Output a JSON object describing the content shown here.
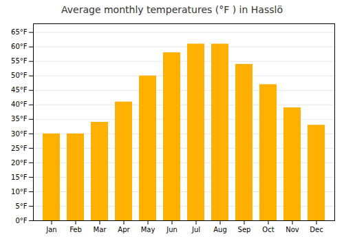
{
  "chart_data": {
    "type": "bar",
    "title": "Average monthly temperatures (°F ) in Hasslö",
    "categories": [
      "Jan",
      "Feb",
      "Mar",
      "Apr",
      "May",
      "Jun",
      "Jul",
      "Aug",
      "Sep",
      "Oct",
      "Nov",
      "Dec"
    ],
    "values": [
      30,
      30,
      34,
      41,
      50,
      58,
      61,
      61,
      54,
      47,
      39,
      33
    ],
    "color": "#FFB000",
    "ylim": [
      0,
      68
    ],
    "yticks": [
      {
        "value": 0,
        "label": "0°F"
      },
      {
        "value": 5,
        "label": "5°F"
      },
      {
        "value": 10,
        "label": "10°F"
      },
      {
        "value": 15,
        "label": "15°F"
      },
      {
        "value": 20,
        "label": "20°F"
      },
      {
        "value": 25,
        "label": "25°F"
      },
      {
        "value": 30,
        "label": "30°F"
      },
      {
        "value": 35,
        "label": "35°F"
      },
      {
        "value": 40,
        "label": "40°F"
      },
      {
        "value": 45,
        "label": "45°F"
      },
      {
        "value": 50,
        "label": "50°F"
      },
      {
        "value": 55,
        "label": "55°F"
      },
      {
        "value": 60,
        "label": "60°F"
      },
      {
        "value": 65,
        "label": "65°F"
      }
    ],
    "grid": true
  }
}
